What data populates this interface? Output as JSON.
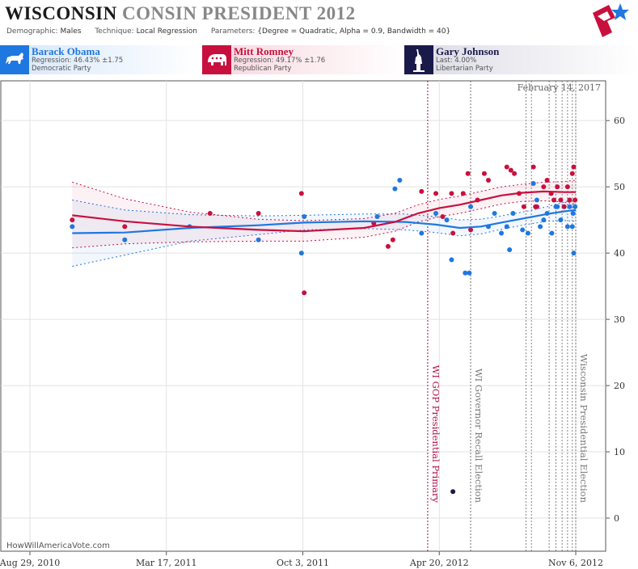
{
  "header": {
    "title_state": "WISCONSIN",
    "title_rest": "CONSIN PRESIDENT 2012",
    "demographic_label": "Demographic:",
    "demographic_value": "Males",
    "technique_label": "Technique:",
    "technique_value": "Local Regression",
    "parameters_label": "Parameters:",
    "parameters_value": "{Degree = Quadratic, Alpha = 0.9, Bandwidth = 40}"
  },
  "candidates": [
    {
      "name": "Barack Obama",
      "stat": "Regression: 46.43% ±1.75",
      "party": "Democratic Party",
      "color": "#1f77e0",
      "icon": "donkey-icon"
    },
    {
      "name": "Mitt Romney",
      "stat": "Regression: 49.17% ±1.76",
      "party": "Republican Party",
      "color": "#c8103e",
      "icon": "elephant-icon"
    },
    {
      "name": "Gary Johnson",
      "stat": "Last: 4.00%",
      "party": "Libertarian Party",
      "color": "#1a1a4a",
      "icon": "statue-of-liberty-icon"
    }
  ],
  "watermark": "HowWillAmericaVote.com",
  "chart_data": {
    "type": "scatter",
    "date_stamp": "February 14, 2017",
    "x_tick_labels": [
      "Aug 29, 2010",
      "Mar 17, 2011",
      "Oct 3, 2011",
      "Apr 20, 2012",
      "Nov 6, 2012"
    ],
    "x_tick_dates": [
      "2010-08-29",
      "2011-03-17",
      "2011-10-03",
      "2012-04-20",
      "2012-11-06"
    ],
    "xlim": [
      "2010-08-29",
      "2012-11-06"
    ],
    "ylim": [
      -5,
      66
    ],
    "y_ticks": [
      0,
      10,
      20,
      30,
      40,
      50,
      60
    ],
    "events": [
      {
        "label": "WI GOP Presidential Primary",
        "date": "2012-04-03",
        "color": "#b0104a"
      },
      {
        "label": "WI Governor Recall Election",
        "date": "2012-06-05",
        "color": "#777777"
      },
      {
        "label": "Wisconsin Presidential Election",
        "date": "2012-11-06",
        "color": "#777777"
      }
    ],
    "series": [
      {
        "name": "Barack Obama",
        "color": "#1f77e0",
        "points": [
          [
            "2010-10-30",
            44
          ],
          [
            "2011-01-15",
            42
          ],
          [
            "2011-04-20",
            44
          ],
          [
            "2011-07-30",
            42
          ],
          [
            "2011-10-01",
            40
          ],
          [
            "2011-10-05",
            45.5
          ],
          [
            "2012-01-20",
            45.5
          ],
          [
            "2012-02-15",
            49.7
          ],
          [
            "2012-02-22",
            51
          ],
          [
            "2012-03-25",
            43
          ],
          [
            "2012-04-15",
            46
          ],
          [
            "2012-05-01",
            45
          ],
          [
            "2012-05-08",
            39
          ],
          [
            "2012-05-28",
            37
          ],
          [
            "2012-06-03",
            37
          ],
          [
            "2012-06-05",
            47
          ],
          [
            "2012-07-01",
            44
          ],
          [
            "2012-07-10",
            46
          ],
          [
            "2012-07-20",
            43
          ],
          [
            "2012-07-28",
            44
          ],
          [
            "2012-08-01",
            40.5
          ],
          [
            "2012-08-06",
            46
          ],
          [
            "2012-08-20",
            43.5
          ],
          [
            "2012-08-28",
            43
          ],
          [
            "2012-09-05",
            50.5
          ],
          [
            "2012-09-10",
            48
          ],
          [
            "2012-09-15",
            44
          ],
          [
            "2012-09-20",
            45
          ],
          [
            "2012-09-25",
            46
          ],
          [
            "2012-10-02",
            43
          ],
          [
            "2012-10-08",
            47
          ],
          [
            "2012-10-10",
            47
          ],
          [
            "2012-10-15",
            45
          ],
          [
            "2012-10-20",
            47
          ],
          [
            "2012-10-25",
            44
          ],
          [
            "2012-10-28",
            47
          ],
          [
            "2012-11-01",
            44
          ],
          [
            "2012-11-02",
            46
          ],
          [
            "2012-11-03",
            40
          ],
          [
            "2012-11-05",
            47
          ]
        ],
        "fit": [
          [
            "2010-10-30",
            43
          ],
          [
            "2011-01-15",
            43.1
          ],
          [
            "2011-04-20",
            43.8
          ],
          [
            "2011-07-30",
            44.2
          ],
          [
            "2011-10-05",
            44.6
          ],
          [
            "2012-01-01",
            44.8
          ],
          [
            "2012-03-01",
            44.7
          ],
          [
            "2012-04-15",
            44.3
          ],
          [
            "2012-05-20",
            43.8
          ],
          [
            "2012-06-20",
            44.0
          ],
          [
            "2012-07-25",
            44.7
          ],
          [
            "2012-08-25",
            45.3
          ],
          [
            "2012-09-25",
            45.9
          ],
          [
            "2012-10-20",
            46.3
          ],
          [
            "2012-11-06",
            46.5
          ]
        ],
        "ci_upper": [
          [
            "2010-10-30",
            48
          ],
          [
            "2011-01-15",
            46.5
          ],
          [
            "2011-04-20",
            45.8
          ],
          [
            "2011-07-30",
            45.6
          ],
          [
            "2011-10-05",
            45.7
          ],
          [
            "2012-01-01",
            45.9
          ],
          [
            "2012-03-01",
            45.9
          ],
          [
            "2012-04-15",
            45.5
          ],
          [
            "2012-05-20",
            45.0
          ],
          [
            "2012-06-20",
            45.1
          ],
          [
            "2012-07-25",
            45.7
          ],
          [
            "2012-08-25",
            46.3
          ],
          [
            "2012-09-25",
            47.0
          ],
          [
            "2012-10-20",
            47.7
          ],
          [
            "2012-11-06",
            48.2
          ]
        ],
        "ci_lower": [
          [
            "2010-10-30",
            38
          ],
          [
            "2011-01-15",
            39.7
          ],
          [
            "2011-04-20",
            41.8
          ],
          [
            "2011-07-30",
            42.8
          ],
          [
            "2011-10-05",
            43.5
          ],
          [
            "2012-01-01",
            43.7
          ],
          [
            "2012-03-01",
            43.5
          ],
          [
            "2012-04-15",
            43.1
          ],
          [
            "2012-05-20",
            42.6
          ],
          [
            "2012-06-20",
            42.9
          ],
          [
            "2012-07-25",
            43.7
          ],
          [
            "2012-08-25",
            44.3
          ],
          [
            "2012-09-25",
            44.8
          ],
          [
            "2012-10-20",
            44.9
          ],
          [
            "2012-11-06",
            44.8
          ]
        ]
      },
      {
        "name": "Mitt Romney",
        "color": "#c8103e",
        "points": [
          [
            "2010-10-30",
            45
          ],
          [
            "2011-01-15",
            44
          ],
          [
            "2011-05-20",
            46
          ],
          [
            "2011-07-30",
            46
          ],
          [
            "2011-10-01",
            49
          ],
          [
            "2011-10-05",
            34
          ],
          [
            "2012-01-15",
            44.5
          ],
          [
            "2012-02-05",
            41
          ],
          [
            "2012-02-12",
            42
          ],
          [
            "2012-03-25",
            49.3
          ],
          [
            "2012-04-15",
            49
          ],
          [
            "2012-04-25",
            45.5
          ],
          [
            "2012-05-08",
            49
          ],
          [
            "2012-05-10",
            43
          ],
          [
            "2012-05-25",
            49
          ],
          [
            "2012-06-01",
            52
          ],
          [
            "2012-06-05",
            43.5
          ],
          [
            "2012-06-15",
            48
          ],
          [
            "2012-06-25",
            52
          ],
          [
            "2012-07-01",
            51
          ],
          [
            "2012-07-28",
            53
          ],
          [
            "2012-08-03",
            52.5
          ],
          [
            "2012-08-08",
            52
          ],
          [
            "2012-08-15",
            49
          ],
          [
            "2012-08-22",
            47
          ],
          [
            "2012-09-05",
            53
          ],
          [
            "2012-09-08",
            47
          ],
          [
            "2012-09-10",
            47
          ],
          [
            "2012-09-20",
            50
          ],
          [
            "2012-09-25",
            51
          ],
          [
            "2012-10-01",
            49
          ],
          [
            "2012-10-05",
            48
          ],
          [
            "2012-10-10",
            50
          ],
          [
            "2012-10-15",
            48
          ],
          [
            "2012-10-20",
            47
          ],
          [
            "2012-10-25",
            50
          ],
          [
            "2012-10-28",
            48
          ],
          [
            "2012-11-01",
            52
          ],
          [
            "2012-11-03",
            53
          ],
          [
            "2012-11-05",
            48
          ]
        ],
        "fit": [
          [
            "2010-10-30",
            45.7
          ],
          [
            "2011-01-15",
            44.8
          ],
          [
            "2011-04-20",
            44.0
          ],
          [
            "2011-07-30",
            43.5
          ],
          [
            "2011-10-05",
            43.3
          ],
          [
            "2012-01-01",
            43.8
          ],
          [
            "2012-02-15",
            44.7
          ],
          [
            "2012-03-20",
            46.0
          ],
          [
            "2012-04-20",
            46.8
          ],
          [
            "2012-05-20",
            47.3
          ],
          [
            "2012-06-20",
            48.0
          ],
          [
            "2012-07-20",
            48.7
          ],
          [
            "2012-08-20",
            49.1
          ],
          [
            "2012-09-20",
            49.3
          ],
          [
            "2012-10-20",
            49.2
          ],
          [
            "2012-11-06",
            49.2
          ]
        ],
        "ci_upper": [
          [
            "2010-10-30",
            50.7
          ],
          [
            "2011-01-15",
            48.2
          ],
          [
            "2011-04-20",
            46.2
          ],
          [
            "2011-07-30",
            45.1
          ],
          [
            "2011-10-05",
            44.9
          ],
          [
            "2012-01-01",
            45.2
          ],
          [
            "2012-02-15",
            46.0
          ],
          [
            "2012-03-20",
            47.3
          ],
          [
            "2012-04-20",
            48.1
          ],
          [
            "2012-05-20",
            48.6
          ],
          [
            "2012-06-20",
            49.3
          ],
          [
            "2012-07-20",
            50.0
          ],
          [
            "2012-08-20",
            50.4
          ],
          [
            "2012-09-20",
            50.7
          ],
          [
            "2012-10-20",
            50.8
          ],
          [
            "2012-11-06",
            51.0
          ]
        ],
        "ci_lower": [
          [
            "2010-10-30",
            40.8
          ],
          [
            "2011-01-15",
            41.4
          ],
          [
            "2011-04-20",
            41.7
          ],
          [
            "2011-07-30",
            41.8
          ],
          [
            "2011-10-05",
            41.8
          ],
          [
            "2012-01-01",
            42.4
          ],
          [
            "2012-02-15",
            43.3
          ],
          [
            "2012-03-20",
            44.7
          ],
          [
            "2012-04-20",
            45.5
          ],
          [
            "2012-05-20",
            46.0
          ],
          [
            "2012-06-20",
            46.7
          ],
          [
            "2012-07-20",
            47.4
          ],
          [
            "2012-08-20",
            47.8
          ],
          [
            "2012-09-20",
            47.9
          ],
          [
            "2012-10-20",
            47.7
          ],
          [
            "2012-11-06",
            47.4
          ]
        ]
      },
      {
        "name": "Gary Johnson",
        "color": "#1a1a4a",
        "points": [
          [
            "2012-05-10",
            4
          ]
        ]
      }
    ],
    "poll_dates": [
      "2012-04-03",
      "2012-06-05",
      "2012-08-25",
      "2012-09-02",
      "2012-09-28",
      "2012-10-08",
      "2012-10-17",
      "2012-10-25",
      "2012-11-01",
      "2012-11-06"
    ],
    "grid": true
  }
}
